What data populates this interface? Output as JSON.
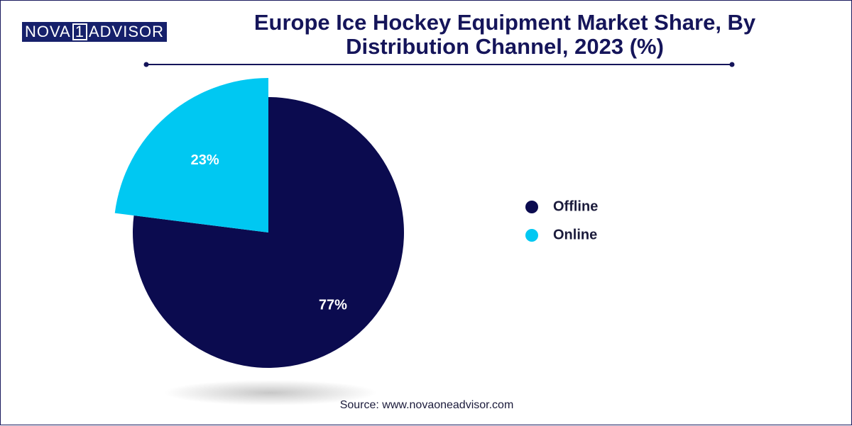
{
  "logo": {
    "left": "NOVA",
    "mark": "1",
    "right": "ADVISOR"
  },
  "chart_data": {
    "type": "pie",
    "title": "Europe Ice Hockey Equipment Market Share, By Distribution Channel, 2023 (%)",
    "categories": [
      "Offline",
      "Online"
    ],
    "values": [
      77,
      23
    ],
    "value_labels": [
      "77%",
      "23%"
    ],
    "colors": [
      "#0b0b4f",
      "#00c8f2"
    ],
    "legend": "right"
  },
  "source": "Source: www.novaoneadvisor.com"
}
